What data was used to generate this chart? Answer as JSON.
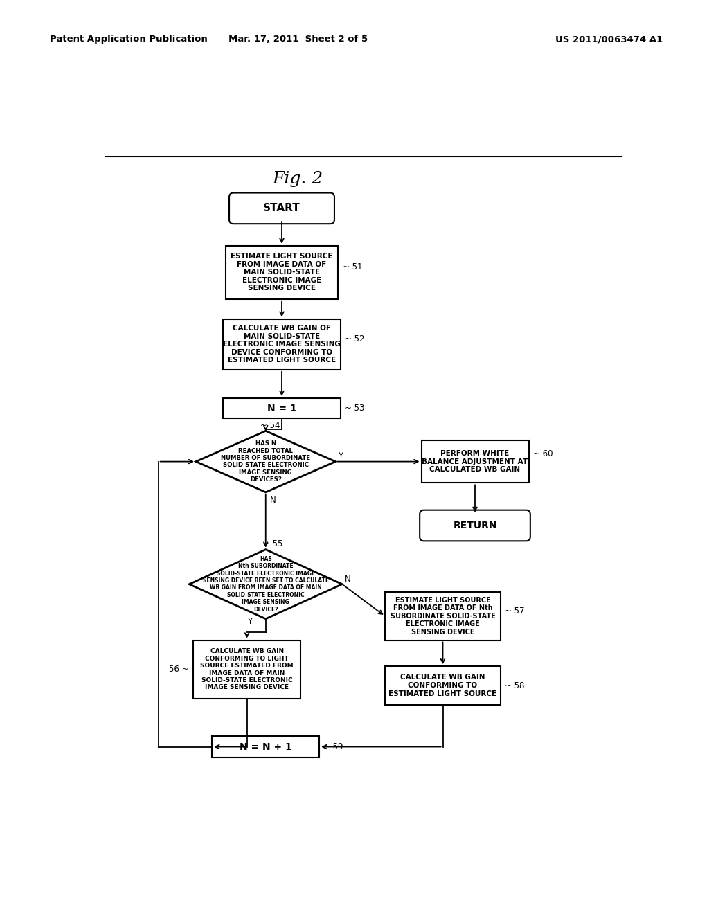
{
  "header_left": "Patent Application Publication",
  "header_center": "Mar. 17, 2011  Sheet 2 of 5",
  "header_right": "US 2011/0063474 A1",
  "figure_label": "Fig. 2",
  "bg_color": "#ffffff"
}
